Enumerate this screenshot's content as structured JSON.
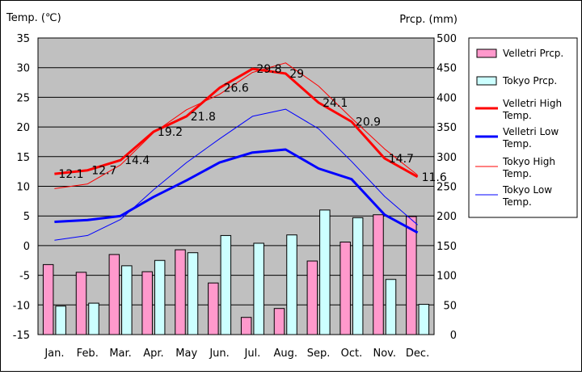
{
  "chart_data": {
    "type": "bar+line",
    "left_axis_label": "Temp. (℃)",
    "right_axis_label": "Prcp. (mm)",
    "categories": [
      "Jan.",
      "Feb.",
      "Mar.",
      "Apr.",
      "May",
      "Jun.",
      "Jul.",
      "Aug.",
      "Sep.",
      "Oct.",
      "Nov.",
      "Dec."
    ],
    "y_left": {
      "min": -15,
      "max": 35,
      "ticks": [
        -15,
        -10,
        -5,
        0,
        5,
        10,
        15,
        20,
        25,
        30,
        35
      ]
    },
    "y_right": {
      "min": 0,
      "max": 500,
      "ticks": [
        0,
        50,
        100,
        150,
        200,
        250,
        300,
        350,
        400,
        450,
        500
      ]
    },
    "grid": true,
    "plot_background": "#c0c0c0",
    "bar_series": [
      {
        "name": "Velletri Prcp.",
        "color": "#ff99cc",
        "values": [
          118,
          105,
          135,
          106,
          143,
          87,
          29,
          44,
          124,
          156,
          202,
          199
        ]
      },
      {
        "name": "Tokyo Prcp.",
        "color": "#ccffff",
        "values": [
          48,
          53,
          116,
          125,
          138,
          167,
          154,
          168,
          210,
          197,
          93,
          51
        ]
      }
    ],
    "line_series": [
      {
        "name": "Velletri High Temp.",
        "color": "#ff0000",
        "width": 3,
        "labeled": true,
        "values": [
          12.1,
          12.7,
          14.4,
          19.2,
          21.8,
          26.6,
          29.8,
          29.0,
          24.1,
          20.9,
          14.7,
          11.6
        ],
        "labels": [
          "12.1",
          "12.7",
          "14.4",
          "19.2",
          "21.8",
          "26.6",
          "29.8",
          "29",
          "24.1",
          "20.9",
          "14.7",
          "11.6"
        ]
      },
      {
        "name": "Velletri Low Temp.",
        "color": "#0000ff",
        "width": 3,
        "labeled": false,
        "values": [
          4.0,
          4.3,
          5.0,
          8.2,
          11.0,
          14.0,
          15.7,
          16.2,
          13.0,
          11.2,
          5.2,
          2.2
        ]
      },
      {
        "name": "Tokyo High Temp.",
        "color": "#ff0000",
        "width": 1,
        "labeled": false,
        "values": [
          9.6,
          10.4,
          13.6,
          19.0,
          22.9,
          25.5,
          29.2,
          30.8,
          26.9,
          21.5,
          16.3,
          11.9
        ]
      },
      {
        "name": "Tokyo Low Temp.",
        "color": "#0000ff",
        "width": 1,
        "labeled": false,
        "values": [
          0.9,
          1.7,
          4.4,
          9.4,
          14.0,
          18.0,
          21.8,
          23.0,
          19.7,
          14.2,
          8.3,
          3.5
        ]
      }
    ],
    "legend": [
      {
        "label": "Velletri Prcp.",
        "kind": "bar",
        "color": "#ff99cc"
      },
      {
        "label": "Tokyo Prcp.",
        "kind": "bar",
        "color": "#ccffff"
      },
      {
        "label": "Velletri High Temp.",
        "kind": "line",
        "color": "#ff0000",
        "width": 3
      },
      {
        "label": "Velletri Low Temp.",
        "kind": "line",
        "color": "#0000ff",
        "width": 3
      },
      {
        "label": "Tokyo High Temp.",
        "kind": "line",
        "color": "#ff0000",
        "width": 1
      },
      {
        "label": "Tokyo Low Temp.",
        "kind": "line",
        "color": "#0000ff",
        "width": 1
      }
    ],
    "legend_position": "right"
  }
}
